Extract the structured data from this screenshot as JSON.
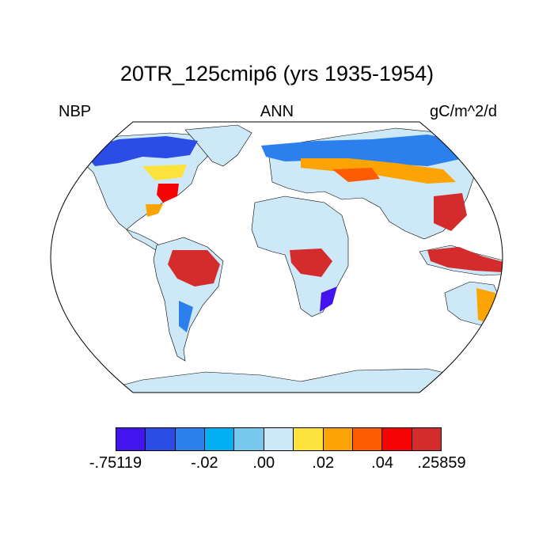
{
  "title": "20TR_125cmip6 (yrs 1935-1954)",
  "left_label": "NBP",
  "center_label": "ANN",
  "right_label": "gC/m^2/d",
  "colorbar": {
    "colors": [
      "#4414ee",
      "#2c4ce6",
      "#2c80ee",
      "#04b0f4",
      "#78c8ee",
      "#cde8f6",
      "#fde23c",
      "#fca404",
      "#fc5c04",
      "#f60404",
      "#d42c2c"
    ],
    "labels": [
      {
        "text": "-.75119",
        "boundary": 0
      },
      {
        "text": "-.02",
        "boundary": 3
      },
      {
        "text": ".00",
        "boundary": 5
      },
      {
        "text": ".02",
        "boundary": 7
      },
      {
        "text": ".04",
        "boundary": 9
      },
      {
        "text": ".25859",
        "boundary": 11
      }
    ]
  }
}
